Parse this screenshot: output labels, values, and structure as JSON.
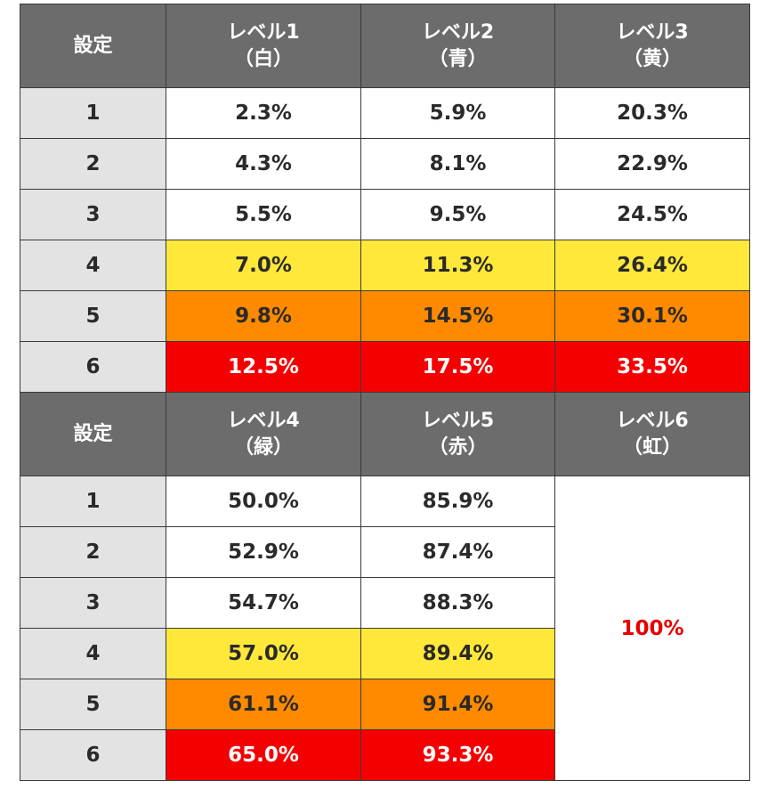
{
  "table1": {
    "headers": [
      {
        "line1": "設定",
        "line2": ""
      },
      {
        "line1": "レベル1",
        "line2": "（白）"
      },
      {
        "line1": "レベル2",
        "line2": "（青）"
      },
      {
        "line1": "レベル3",
        "line2": "（黄）"
      }
    ],
    "rows": [
      {
        "setting": "1",
        "values": [
          "2.3%",
          "5.9%",
          "20.3%"
        ]
      },
      {
        "setting": "2",
        "values": [
          "4.3%",
          "8.1%",
          "22.9%"
        ]
      },
      {
        "setting": "3",
        "values": [
          "5.5%",
          "9.5%",
          "24.5%"
        ]
      },
      {
        "setting": "4",
        "values": [
          "7.0%",
          "11.3%",
          "26.4%"
        ]
      },
      {
        "setting": "5",
        "values": [
          "9.8%",
          "14.5%",
          "30.1%"
        ]
      },
      {
        "setting": "6",
        "values": [
          "12.5%",
          "17.5%",
          "33.5%"
        ]
      }
    ]
  },
  "table2": {
    "headers": [
      {
        "line1": "設定",
        "line2": ""
      },
      {
        "line1": "レベル4",
        "line2": "（緑）"
      },
      {
        "line1": "レベル5",
        "line2": "（赤）"
      },
      {
        "line1": "レベル6",
        "line2": "（虹）"
      }
    ],
    "rows": [
      {
        "setting": "1",
        "values": [
          "50.0%",
          "85.9%"
        ]
      },
      {
        "setting": "2",
        "values": [
          "52.9%",
          "87.4%"
        ]
      },
      {
        "setting": "3",
        "values": [
          "54.7%",
          "88.3%"
        ]
      },
      {
        "setting": "4",
        "values": [
          "57.0%",
          "89.4%"
        ]
      },
      {
        "setting": "5",
        "values": [
          "61.1%",
          "91.4%"
        ]
      },
      {
        "setting": "6",
        "values": [
          "65.0%",
          "93.3%"
        ]
      }
    ],
    "level6_value": "100%"
  },
  "colors": {
    "header_bg": "#6c6c6c",
    "setting_bg": "#e3e3e3",
    "setting4_bg": "#ffe83a",
    "setting5_bg": "#ff8a00",
    "setting6_bg": "#f50000",
    "rainbow_text": "#e60000"
  }
}
